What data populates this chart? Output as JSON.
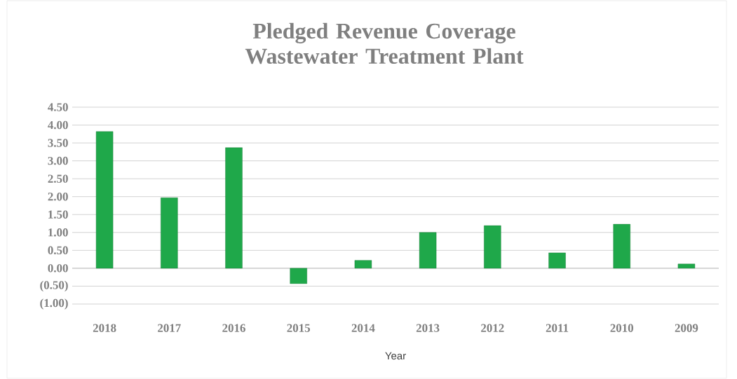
{
  "chart_data": {
    "type": "bar",
    "title": "Pledged Revenue Coverage Wastewater Treatment Plant",
    "xlabel": "Year",
    "categories": [
      "2018",
      "2017",
      "2016",
      "2015",
      "2014",
      "2013",
      "2012",
      "2011",
      "2010",
      "2009"
    ],
    "values": [
      3.82,
      1.97,
      3.37,
      -0.43,
      0.22,
      1.0,
      1.19,
      0.43,
      1.23,
      0.12
    ],
    "color": "#1fa84a",
    "ylim": [
      -1,
      4.5
    ],
    "yticks": [
      {
        "value": -1,
        "label": "(1.00)"
      },
      {
        "value": -0.5,
        "label": "(0.50)"
      },
      {
        "value": 0,
        "label": "0.00"
      },
      {
        "value": 0.5,
        "label": "0.50"
      },
      {
        "value": 1,
        "label": "1.00"
      },
      {
        "value": 1.5,
        "label": "1.50"
      },
      {
        "value": 2,
        "label": "2.00"
      },
      {
        "value": 2.5,
        "label": "2.50"
      },
      {
        "value": 3,
        "label": "3.00"
      },
      {
        "value": 3.5,
        "label": "3.50"
      },
      {
        "value": 4,
        "label": "4.00"
      },
      {
        "value": 4.5,
        "label": "4.50"
      }
    ],
    "grid": "y"
  }
}
